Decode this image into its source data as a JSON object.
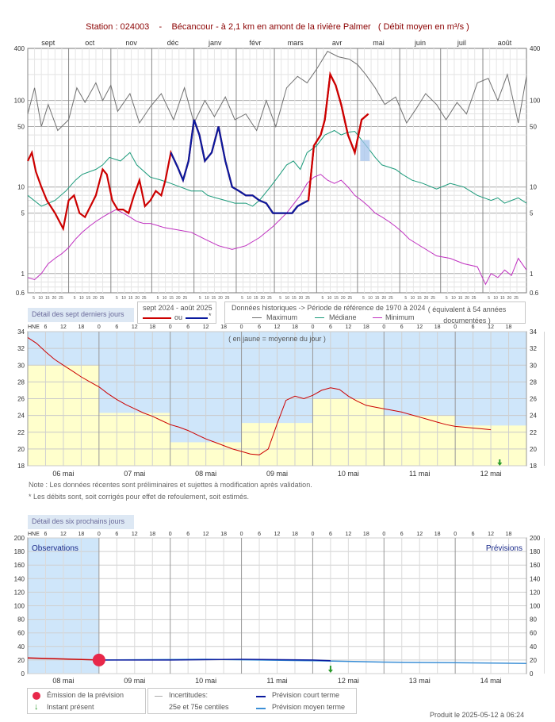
{
  "header": {
    "station": "Station : 024003",
    "sep": "-",
    "location": "Bécancour - à 2,1 km en amont de la rivière Palmer",
    "unit": "( Débit moyen en m³/s )"
  },
  "colors": {
    "current": "#cc0000",
    "estimated": "#0a1a9e",
    "maximum": "#707070",
    "median": "#1a9a7a",
    "minimum": "#c030c0",
    "daily_mean_bg": "#ffffcc",
    "obs_bg": "#cfe6fa"
  },
  "chart_data": [
    {
      "name": "annual",
      "type": "line",
      "scale": "log",
      "ylim": [
        0.6,
        400
      ],
      "yticks": [
        "400",
        "100",
        "50",
        "10",
        "5",
        "1",
        "0.6"
      ],
      "months": [
        "sept",
        "oct",
        "nov",
        "déc",
        "janv",
        "févr",
        "mars",
        "avr",
        "mai",
        "juin",
        "juil",
        "août"
      ],
      "day_ticks": [
        "5",
        "10",
        "15",
        "20",
        "25"
      ],
      "series": [
        {
          "name": "Maximum",
          "key": "maximum",
          "x": [
            0,
            5,
            10,
            15,
            22,
            30,
            36,
            42,
            50,
            55,
            61,
            66,
            75,
            82,
            90,
            98,
            107,
            115,
            122,
            130,
            137,
            145,
            152,
            160,
            168,
            175,
            182,
            190,
            198,
            205,
            212,
            220,
            228,
            236,
            242,
            248,
            255,
            262,
            270,
            278,
            285,
            292,
            300,
            307,
            315,
            322,
            330,
            338,
            345,
            352,
            360,
            366
          ],
          "y": [
            70,
            140,
            50,
            90,
            45,
            60,
            140,
            95,
            160,
            100,
            150,
            75,
            120,
            55,
            85,
            120,
            60,
            140,
            55,
            100,
            65,
            110,
            60,
            70,
            45,
            100,
            50,
            140,
            190,
            160,
            230,
            370,
            320,
            300,
            260,
            200,
            140,
            90,
            110,
            55,
            80,
            120,
            90,
            60,
            95,
            70,
            160,
            180,
            100,
            200,
            55,
            190
          ]
        },
        {
          "name": "Médiane",
          "key": "median",
          "x": [
            0,
            10,
            20,
            28,
            35,
            40,
            50,
            55,
            60,
            68,
            75,
            80,
            90,
            98,
            105,
            112,
            120,
            128,
            132,
            138,
            145,
            152,
            160,
            165,
            170,
            178,
            185,
            190,
            195,
            200,
            205,
            212,
            218,
            225,
            230,
            235,
            240,
            245,
            250,
            255,
            260,
            265,
            270,
            275,
            282,
            290,
            300,
            310,
            320,
            330,
            340,
            345,
            350,
            355,
            360,
            366
          ],
          "y": [
            8,
            6,
            7,
            9,
            12,
            14,
            16,
            18,
            22,
            20,
            25,
            18,
            13,
            12,
            11,
            10,
            9,
            9,
            8,
            7.5,
            7,
            6.5,
            6.5,
            6,
            7,
            10,
            14,
            18,
            20,
            16,
            25,
            30,
            40,
            45,
            40,
            43,
            44,
            35,
            28,
            22,
            18,
            17,
            16,
            14,
            12,
            11,
            9.5,
            11,
            10,
            8,
            7,
            7.5,
            6.5,
            7,
            7.5,
            6.5
          ]
        },
        {
          "name": "Minimum",
          "key": "minimum",
          "x": [
            0,
            5,
            10,
            15,
            20,
            25,
            30,
            35,
            40,
            45,
            50,
            55,
            60,
            65,
            70,
            75,
            80,
            85,
            90,
            95,
            100,
            110,
            120,
            130,
            140,
            150,
            160,
            170,
            180,
            190,
            200,
            205,
            210,
            215,
            220,
            225,
            230,
            235,
            240,
            245,
            250,
            255,
            260,
            265,
            270,
            275,
            280,
            290,
            300,
            310,
            320,
            330,
            336,
            340,
            345,
            350,
            355,
            360,
            366
          ],
          "y": [
            0.9,
            0.85,
            1,
            1.3,
            1.5,
            1.7,
            2,
            2.5,
            3,
            3.5,
            4,
            4.5,
            5,
            5.5,
            5,
            4.5,
            4,
            3.8,
            3.8,
            3.6,
            3.4,
            3.2,
            3,
            2.5,
            2.1,
            1.9,
            2.1,
            2.6,
            3.5,
            5,
            8,
            11,
            13,
            14,
            12,
            11,
            12,
            10,
            8,
            7,
            6,
            5,
            4.5,
            4,
            3.5,
            3,
            2.5,
            2,
            1.6,
            1.5,
            1.3,
            1.2,
            0.75,
            1,
            0.9,
            1.1,
            0.95,
            1.5,
            1.1
          ]
        },
        {
          "name": "sept 2024 - août 2025",
          "key": "current",
          "x": [
            0,
            3,
            6,
            10,
            14,
            20,
            26,
            30,
            34,
            38,
            42,
            46,
            50,
            55,
            58,
            62,
            66,
            70,
            74,
            78,
            82,
            86,
            90,
            94,
            98,
            101,
            105,
            110,
            114,
            118,
            122,
            126,
            130,
            135,
            140,
            145,
            150,
            155,
            160,
            165,
            170,
            175,
            180,
            185,
            189,
            194,
            198,
            202,
            206,
            210,
            215,
            218,
            222,
            226,
            230,
            235,
            240,
            245,
            250
          ],
          "y": [
            20,
            25,
            15,
            10,
            7,
            5,
            3.3,
            7,
            8,
            5,
            4.5,
            6,
            8,
            16,
            14,
            7,
            5.5,
            5.5,
            5,
            8,
            12,
            6,
            7,
            9,
            8,
            12,
            25,
            17,
            12,
            20,
            60,
            40,
            20,
            25,
            50,
            20,
            10,
            9,
            8,
            8,
            7,
            6.5,
            5,
            5,
            5,
            5,
            6,
            6.5,
            7,
            30,
            40,
            60,
            200,
            150,
            90,
            40,
            25,
            60,
            70
          ]
        },
        {
          "name": "*",
          "key": "estimated",
          "x": [
            105,
            110,
            114,
            118,
            122,
            126,
            130,
            135,
            140,
            145,
            150,
            155,
            160,
            165,
            170,
            175,
            180,
            185,
            189,
            194,
            198,
            202,
            206
          ],
          "y": [
            25,
            17,
            12,
            20,
            60,
            40,
            20,
            25,
            50,
            20,
            10,
            9,
            8,
            8,
            7,
            6.5,
            5,
            5,
            5,
            5,
            6,
            6.5,
            7
          ]
        },
        {
          "name": "sept 2024 - août 2025",
          "key": "current2",
          "x": [
            206,
            210,
            215,
            218,
            222,
            226,
            230,
            235,
            240,
            245,
            250
          ],
          "y": [
            7,
            30,
            40,
            60,
            200,
            150,
            90,
            40,
            25,
            60,
            70
          ]
        }
      ]
    },
    {
      "name": "seven_days",
      "type": "line",
      "ylim": [
        18,
        34
      ],
      "yticks": [
        34,
        32,
        30,
        28,
        26,
        24,
        22,
        20,
        18
      ],
      "hours_label": "HNE",
      "hours": [
        "6",
        "12",
        "18",
        "0"
      ],
      "days": [
        "06 mai",
        "07 mai",
        "08 mai",
        "09 mai",
        "10 mai",
        "11 mai",
        "12 mai"
      ],
      "daily_means": [
        30.0,
        24.3,
        20.8,
        23.1,
        26.0,
        24.0,
        22.8
      ],
      "x": [
        0,
        3,
        6,
        9,
        12,
        15,
        18,
        21,
        24,
        27,
        30,
        33,
        36,
        39,
        42,
        45,
        48,
        51,
        54,
        57,
        60,
        63,
        66,
        69,
        72,
        75,
        78,
        81,
        84,
        87,
        90,
        93,
        96,
        99,
        102,
        105,
        108,
        111,
        114,
        117,
        120,
        123,
        126,
        129,
        132,
        135,
        138,
        141,
        144,
        147,
        150,
        153,
        156,
        159,
        162,
        165,
        168,
        171,
        174,
        177,
        180,
        183,
        186
      ],
      "y": [
        33.3,
        32.6,
        31.6,
        30.7,
        30.0,
        29.3,
        28.6,
        28.0,
        27.4,
        26.6,
        25.9,
        25.3,
        24.8,
        24.3,
        23.9,
        23.4,
        22.9,
        22.6,
        22.2,
        21.7,
        21.2,
        20.8,
        20.4,
        20.0,
        19.7,
        19.4,
        19.3,
        20.0,
        23.0,
        25.8,
        26.3,
        26.0,
        26.4,
        27.0,
        27.3,
        27.1,
        26.3,
        25.7,
        25.2,
        25.0,
        24.8,
        24.6,
        24.4,
        24.1,
        23.8,
        23.5,
        23.2,
        22.9,
        22.7,
        22.6,
        22.5,
        22.4,
        22.3,
        22.3,
        22.3,
        22.3,
        22.2,
        22.2,
        22.2,
        22.2,
        22.2,
        22.2,
        22.2
      ],
      "x_end": 157
    },
    {
      "name": "forecast",
      "type": "line",
      "ylim": [
        0,
        200
      ],
      "yticks": [
        200,
        180,
        160,
        140,
        120,
        100,
        80,
        60,
        40,
        20,
        0
      ],
      "hours_label": "HNE",
      "hours": [
        "6",
        "12",
        "18",
        "0"
      ],
      "days": [
        "08 mai",
        "09 mai",
        "10 mai",
        "11 mai",
        "12 mai",
        "13 mai",
        "14 mai"
      ],
      "observations_label": "Observations",
      "forecast_label": "Prévisions",
      "observed": {
        "x": [
          0,
          24
        ],
        "y": [
          23,
          20
        ]
      },
      "short_term": {
        "x": [
          24,
          48,
          72,
          96,
          102
        ],
        "y": [
          20,
          20,
          21,
          20,
          19
        ]
      },
      "medium_term": {
        "x": [
          24,
          60,
          96,
          120,
          144,
          168
        ],
        "y": [
          20,
          21,
          19,
          17,
          16,
          15
        ]
      },
      "emission_hour": 24,
      "present_hour": 102
    }
  ],
  "legend_annual": {
    "detail_label": "Détail des sept derniers jours",
    "period": "sept 2024 - août 2025",
    "or": "ou",
    "star": "*",
    "hist": "Données historiques -> Période de référence de 1970 à 2024",
    "equiv": "( équivalent à 54 années documentées )",
    "max": "Maximum",
    "med": "Médiane",
    "min": "Minimum"
  },
  "seven_days_note": "( en jaune = moyenne du jour )",
  "notes": [
    "Note : Les données récentes sont préliminaires et sujettes à modification après validation.",
    "* Les débits sont, soit corrigés pour effet de refoulement, soit estimés."
  ],
  "forecast_box": "Détail des six prochains jours",
  "forecast_legend": {
    "emission": "Émission de la prévision",
    "present": "Instant présent",
    "uncert": "Incertitudes:",
    "centiles": "25e et 75e centiles",
    "short": "Prévision court terme",
    "medium": "Prévision moyen terme"
  },
  "footer": "Produit le 2025-05-12 à 06:24"
}
